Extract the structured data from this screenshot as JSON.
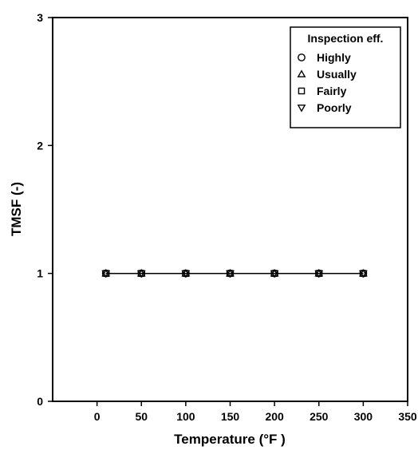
{
  "chart_data": {
    "type": "line",
    "xlabel": "Temperature (°F )",
    "ylabel": "TMSF (-)",
    "xlim": [
      -50,
      350
    ],
    "ylim": [
      0,
      3
    ],
    "x_ticks": [
      "0",
      "50",
      "100",
      "150",
      "200",
      "250",
      "300",
      "350"
    ],
    "y_ticks": [
      "0",
      "1",
      "2",
      "3"
    ],
    "grid": false,
    "legend": {
      "title": "Inspection eff.",
      "placement": "top-right"
    },
    "x": [
      10,
      50,
      100,
      150,
      200,
      250,
      300
    ],
    "series": [
      {
        "name": "Highly",
        "marker": "circle",
        "values": [
          1,
          1,
          1,
          1,
          1,
          1,
          1
        ]
      },
      {
        "name": "Usually",
        "marker": "triangle-up",
        "values": [
          1,
          1,
          1,
          1,
          1,
          1,
          1
        ]
      },
      {
        "name": "Fairly",
        "marker": "square",
        "values": [
          1,
          1,
          1,
          1,
          1,
          1,
          1
        ]
      },
      {
        "name": "Poorly",
        "marker": "triangle-down",
        "values": [
          1,
          1,
          1,
          1,
          1,
          1,
          1
        ]
      }
    ]
  }
}
